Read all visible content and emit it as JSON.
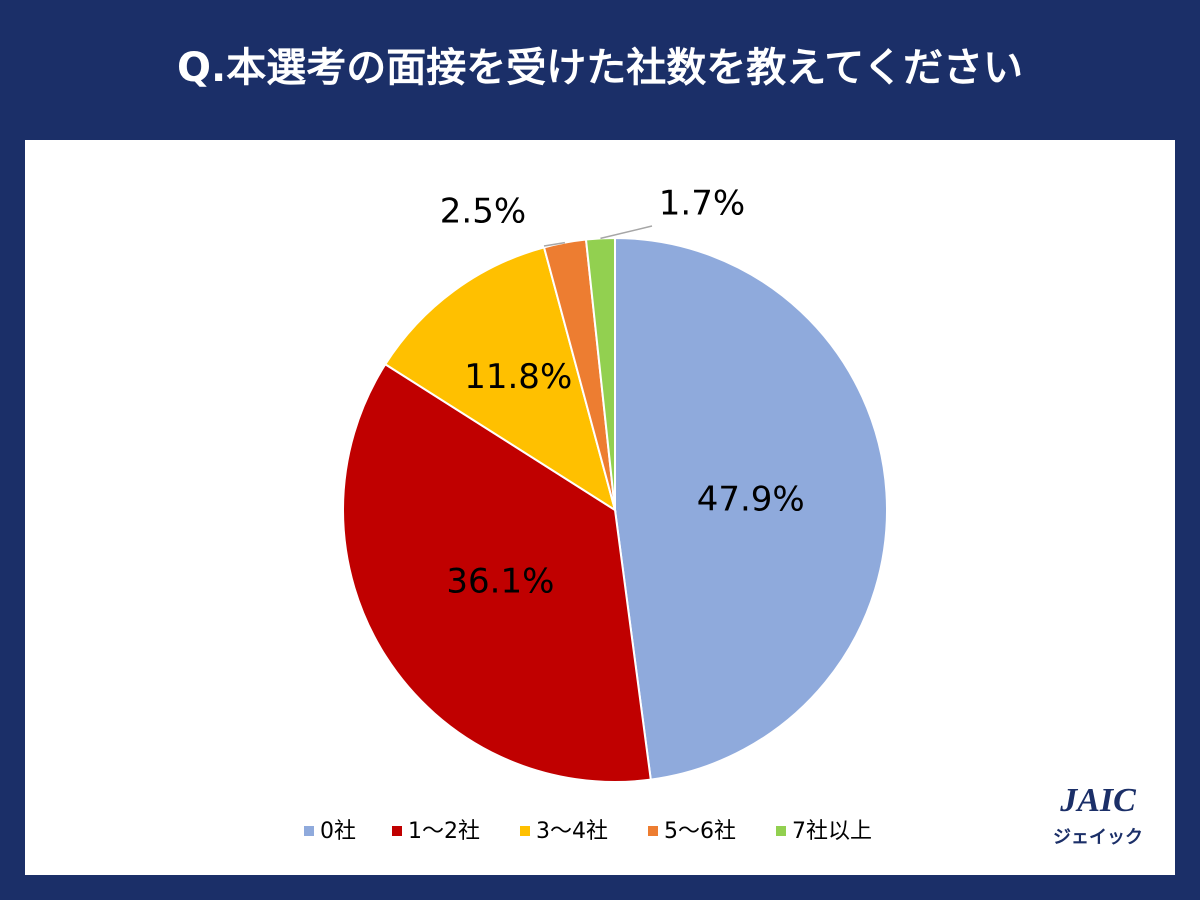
{
  "chart_data": {
    "type": "pie",
    "title": "Q.本選考の面接を受けた社数を教えてください",
    "categories": [
      "0社",
      "1～2社",
      "3～4社",
      "5～6社",
      "7社以上"
    ],
    "values": [
      47.9,
      36.1,
      11.8,
      2.5,
      1.7
    ],
    "value_labels": [
      "47.9%",
      "36.1%",
      "11.8%",
      "2.5%",
      "1.7%"
    ],
    "colors": [
      "#8faadc",
      "#c00000",
      "#ffc000",
      "#ed7d31",
      "#92d050"
    ],
    "legend": "bottom"
  },
  "logo": {
    "text": "JAIC",
    "subtext": "ジェイック"
  }
}
